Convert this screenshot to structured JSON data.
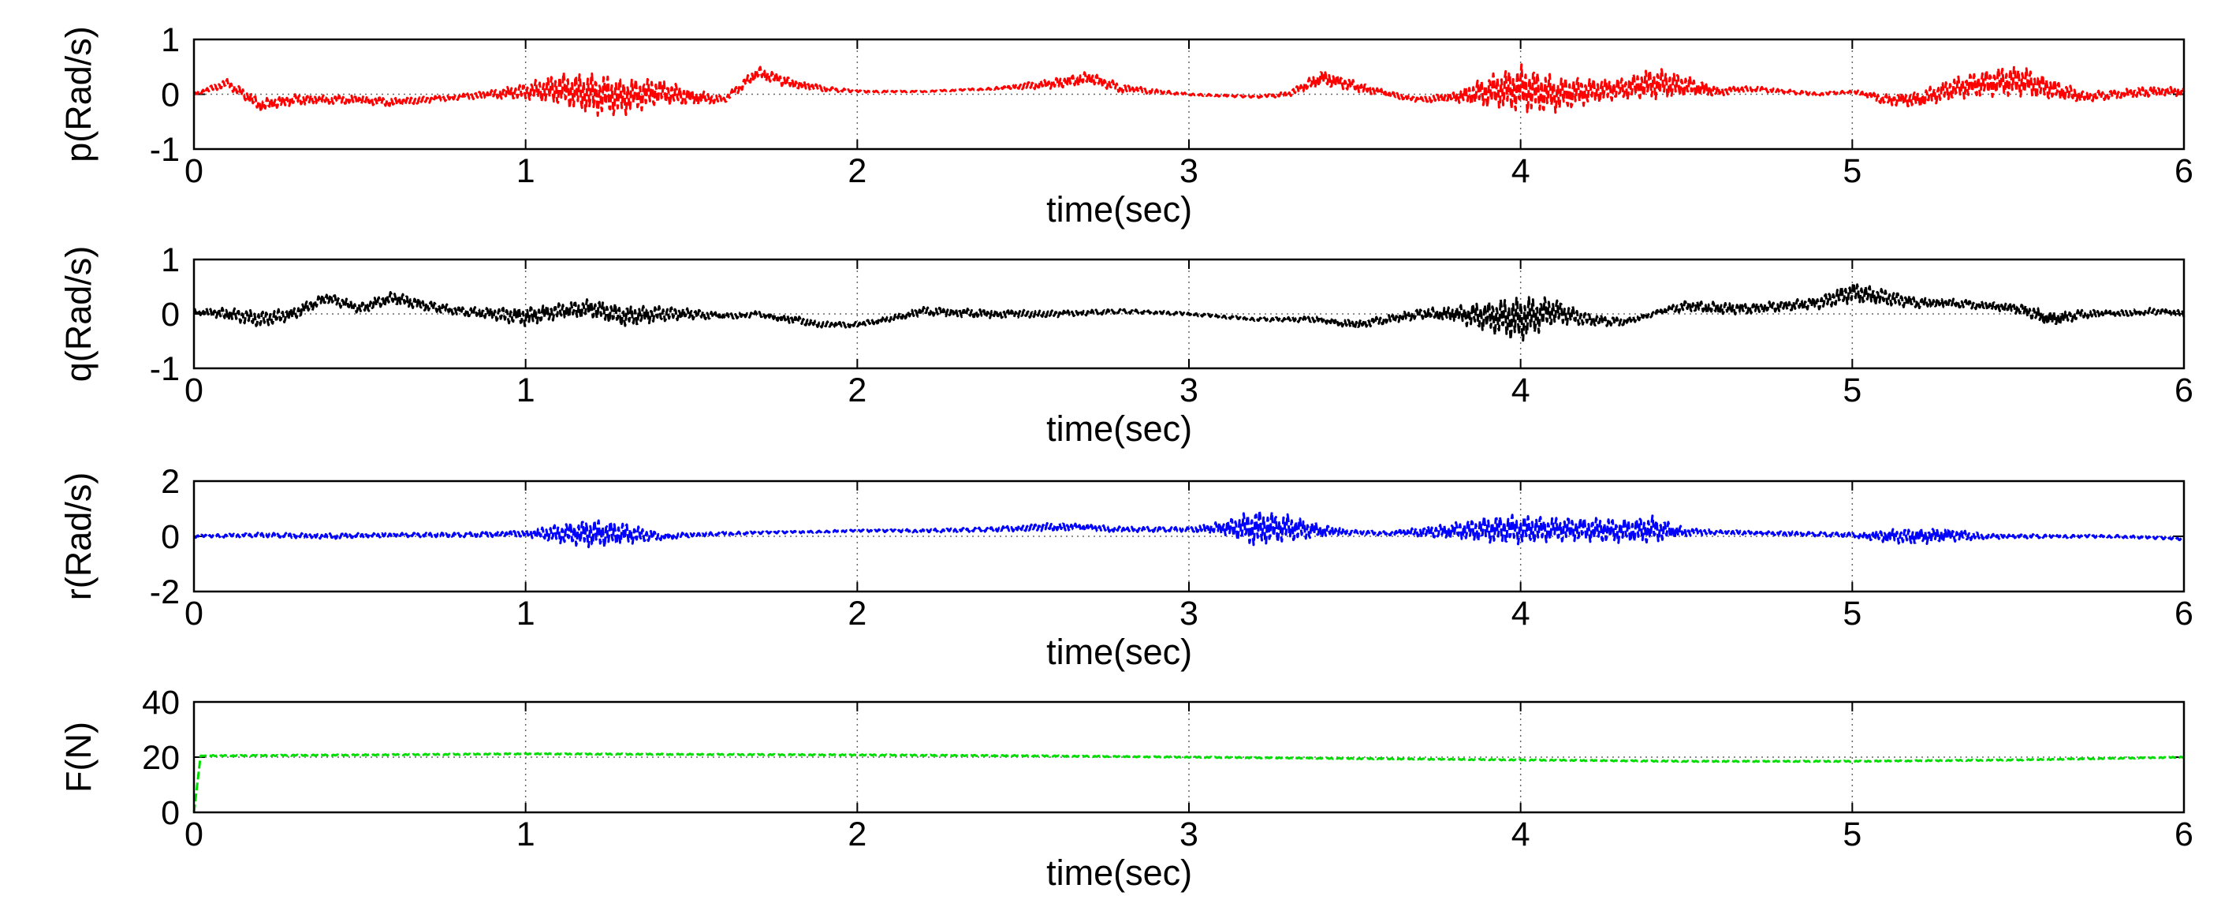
{
  "figure": {
    "background": "#ffffff"
  },
  "chart_data": [
    {
      "type": "line",
      "xlabel": "time(sec)",
      "ylabel": "p(Rad/s)",
      "xlim": [
        0,
        6
      ],
      "ylim": [
        -1,
        1
      ],
      "xticks": [
        "0",
        "1",
        "2",
        "3",
        "4",
        "5",
        "6"
      ],
      "yticks": [
        "-1",
        "0",
        "1"
      ],
      "grid": true,
      "line_style": "dashed",
      "color": "#ff0000",
      "series": [
        {
          "x": [
            0,
            0.1,
            0.2,
            0.3,
            0.4,
            0.5,
            0.6,
            0.7,
            0.8,
            0.9,
            1.0,
            1.1,
            1.2,
            1.3,
            1.4,
            1.5,
            1.6,
            1.7,
            1.8,
            1.9,
            2.0,
            2.2,
            2.4,
            2.6,
            2.7,
            2.8,
            2.9,
            3.0,
            3.2,
            3.3,
            3.4,
            3.5,
            3.6,
            3.7,
            3.8,
            3.9,
            4.0,
            4.1,
            4.2,
            4.3,
            4.4,
            4.5,
            4.6,
            4.7,
            4.8,
            4.9,
            5.0,
            5.1,
            5.2,
            5.3,
            5.4,
            5.5,
            5.6,
            5.7,
            5.8,
            5.9,
            6.0
          ],
          "y": [
            0.0,
            0.2,
            -0.2,
            -0.1,
            -0.1,
            -0.1,
            -0.15,
            -0.1,
            -0.05,
            0.0,
            0.05,
            0.1,
            0.0,
            -0.05,
            0.05,
            -0.05,
            -0.1,
            0.4,
            0.2,
            0.1,
            0.05,
            0.05,
            0.1,
            0.2,
            0.3,
            0.1,
            0.05,
            0.0,
            -0.05,
            0.0,
            0.3,
            0.15,
            0.0,
            -0.1,
            -0.05,
            0.05,
            0.1,
            0.0,
            0.05,
            0.1,
            0.2,
            0.15,
            0.05,
            0.1,
            0.05,
            0.0,
            0.05,
            -0.1,
            -0.1,
            0.1,
            0.2,
            0.25,
            0.1,
            -0.05,
            0.0,
            0.05,
            0.05
          ],
          "amplitude": [
            0.03,
            0.08,
            0.12,
            0.1,
            0.08,
            0.08,
            0.08,
            0.06,
            0.05,
            0.08,
            0.15,
            0.3,
            0.4,
            0.35,
            0.25,
            0.15,
            0.06,
            0.12,
            0.1,
            0.05,
            0.02,
            0.01,
            0.02,
            0.1,
            0.12,
            0.08,
            0.04,
            0.02,
            0.02,
            0.05,
            0.15,
            0.1,
            0.06,
            0.05,
            0.1,
            0.3,
            0.45,
            0.35,
            0.25,
            0.2,
            0.3,
            0.2,
            0.08,
            0.05,
            0.04,
            0.03,
            0.03,
            0.1,
            0.15,
            0.2,
            0.25,
            0.3,
            0.2,
            0.1,
            0.08,
            0.1,
            0.08
          ]
        }
      ]
    },
    {
      "type": "line",
      "xlabel": "time(sec)",
      "ylabel": "q(Rad/s)",
      "xlim": [
        0,
        6
      ],
      "ylim": [
        -1,
        1
      ],
      "xticks": [
        "0",
        "1",
        "2",
        "3",
        "4",
        "5",
        "6"
      ],
      "yticks": [
        "-1",
        "0",
        "1"
      ],
      "grid": true,
      "line_style": "dashed",
      "color": "#000000",
      "series": [
        {
          "x": [
            0,
            0.1,
            0.2,
            0.3,
            0.4,
            0.5,
            0.6,
            0.7,
            0.8,
            0.9,
            1.0,
            1.1,
            1.2,
            1.3,
            1.4,
            1.5,
            1.6,
            1.7,
            1.8,
            1.9,
            2.0,
            2.2,
            2.4,
            2.6,
            2.8,
            3.0,
            3.2,
            3.4,
            3.5,
            3.6,
            3.7,
            3.8,
            3.9,
            4.0,
            4.1,
            4.2,
            4.3,
            4.4,
            4.5,
            4.6,
            4.7,
            4.8,
            4.9,
            5.0,
            5.1,
            5.2,
            5.3,
            5.4,
            5.5,
            5.6,
            5.7,
            5.8,
            5.9,
            6.0
          ],
          "y": [
            0.05,
            0.0,
            -0.1,
            0.0,
            0.3,
            0.1,
            0.3,
            0.15,
            0.05,
            0.0,
            -0.05,
            0.05,
            0.1,
            -0.05,
            0.0,
            0.0,
            -0.05,
            0.0,
            -0.1,
            -0.2,
            -0.2,
            0.05,
            0.0,
            0.0,
            0.05,
            0.0,
            -0.1,
            -0.1,
            -0.2,
            -0.1,
            0.0,
            0.0,
            -0.05,
            -0.1,
            0.05,
            -0.1,
            -0.15,
            0.0,
            0.15,
            0.1,
            0.1,
            0.15,
            0.2,
            0.4,
            0.3,
            0.2,
            0.2,
            0.15,
            0.1,
            -0.1,
            0.0,
            0.0,
            0.05,
            0.0
          ],
          "amplitude": [
            0.05,
            0.12,
            0.15,
            0.12,
            0.1,
            0.1,
            0.12,
            0.1,
            0.08,
            0.12,
            0.18,
            0.15,
            0.18,
            0.2,
            0.15,
            0.1,
            0.06,
            0.05,
            0.08,
            0.06,
            0.05,
            0.08,
            0.08,
            0.06,
            0.04,
            0.03,
            0.03,
            0.06,
            0.08,
            0.08,
            0.1,
            0.15,
            0.3,
            0.45,
            0.25,
            0.12,
            0.08,
            0.05,
            0.1,
            0.12,
            0.1,
            0.1,
            0.12,
            0.2,
            0.15,
            0.1,
            0.08,
            0.08,
            0.1,
            0.15,
            0.08,
            0.06,
            0.06,
            0.06
          ]
        }
      ]
    },
    {
      "type": "line",
      "xlabel": "time(sec)",
      "ylabel": "r(Rad/s)",
      "xlim": [
        0,
        6
      ],
      "ylim": [
        -2,
        2
      ],
      "xticks": [
        "0",
        "1",
        "2",
        "3",
        "4",
        "5",
        "6"
      ],
      "yticks": [
        "-2",
        "0",
        "2"
      ],
      "grid": true,
      "line_style": "dashed",
      "color": "#0000ff",
      "series": [
        {
          "x": [
            0,
            0.2,
            0.4,
            0.6,
            0.8,
            1.0,
            1.1,
            1.2,
            1.3,
            1.4,
            1.5,
            1.6,
            1.8,
            2.0,
            2.2,
            2.4,
            2.6,
            2.8,
            3.0,
            3.1,
            3.2,
            3.3,
            3.4,
            3.5,
            3.6,
            3.8,
            3.9,
            4.0,
            4.1,
            4.2,
            4.3,
            4.4,
            4.5,
            4.6,
            4.8,
            5.0,
            5.1,
            5.2,
            5.3,
            5.4,
            5.6,
            5.8,
            6.0
          ],
          "y": [
            0.0,
            0.05,
            0.0,
            0.05,
            0.05,
            0.1,
            0.1,
            0.1,
            0.1,
            0.0,
            0.05,
            0.1,
            0.15,
            0.2,
            0.2,
            0.25,
            0.35,
            0.25,
            0.25,
            0.3,
            0.3,
            0.3,
            0.2,
            0.15,
            0.1,
            0.2,
            0.25,
            0.25,
            0.25,
            0.25,
            0.2,
            0.25,
            0.15,
            0.15,
            0.1,
            0.05,
            0.0,
            0.0,
            0.05,
            0.0,
            0.0,
            0.0,
            -0.1
          ],
          "amplitude": [
            0.05,
            0.08,
            0.1,
            0.08,
            0.08,
            0.12,
            0.35,
            0.55,
            0.4,
            0.15,
            0.08,
            0.06,
            0.04,
            0.04,
            0.06,
            0.08,
            0.15,
            0.1,
            0.08,
            0.25,
            0.7,
            0.5,
            0.25,
            0.08,
            0.08,
            0.3,
            0.5,
            0.55,
            0.45,
            0.45,
            0.45,
            0.5,
            0.15,
            0.08,
            0.08,
            0.08,
            0.25,
            0.3,
            0.25,
            0.1,
            0.06,
            0.05,
            0.05
          ]
        }
      ]
    },
    {
      "type": "line",
      "xlabel": "time(sec)",
      "ylabel": "F(N)",
      "xlim": [
        0,
        6
      ],
      "ylim": [
        0,
        40
      ],
      "xticks": [
        "0",
        "1",
        "2",
        "3",
        "4",
        "5",
        "6"
      ],
      "yticks": [
        "0",
        "20",
        "40"
      ],
      "grid": true,
      "line_style": "dashed",
      "color": "#00dd00",
      "series": [
        {
          "x": [
            0,
            0.02,
            0.05,
            0.5,
            1.0,
            1.5,
            2.0,
            2.5,
            3.0,
            3.5,
            4.0,
            4.5,
            5.0,
            5.5,
            6.0
          ],
          "y": [
            0,
            20.5,
            20.5,
            20.8,
            21.2,
            21.0,
            20.8,
            20.5,
            20.0,
            19.5,
            19.0,
            18.5,
            18.5,
            19.0,
            20.0
          ],
          "amplitude": [
            0,
            0,
            0.2,
            0.2,
            0.2,
            0.2,
            0.2,
            0.2,
            0.2,
            0.2,
            0.2,
            0.2,
            0.2,
            0.2,
            0.2
          ]
        }
      ]
    }
  ]
}
